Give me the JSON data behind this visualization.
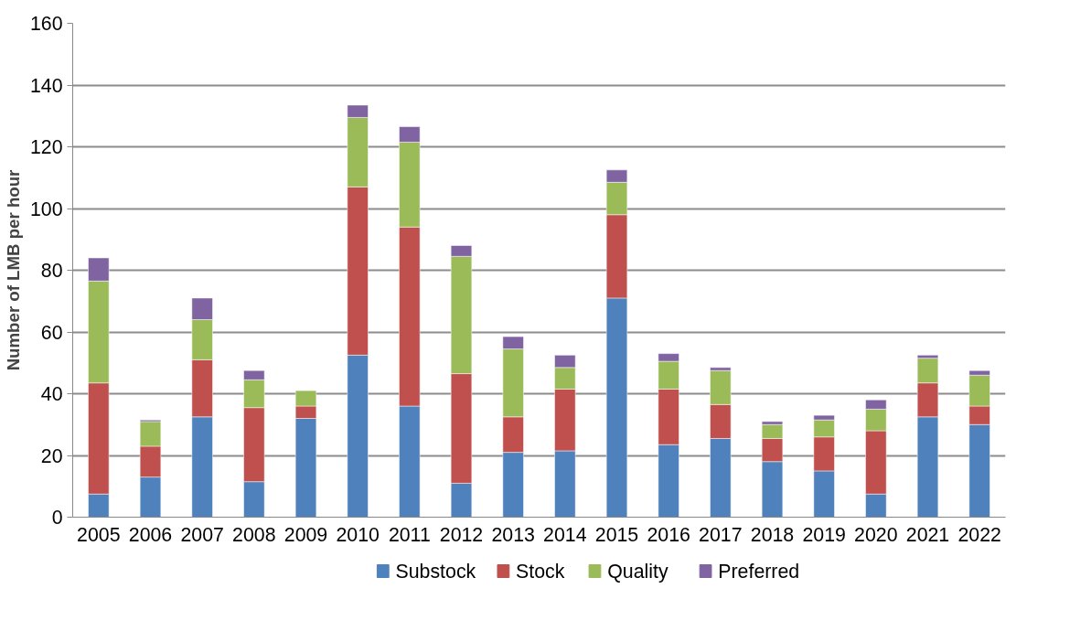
{
  "chart_data": {
    "type": "bar",
    "stacked": true,
    "ylabel": "Number of LMB per hour",
    "categories": [
      "2005",
      "2006",
      "2007",
      "2008",
      "2009",
      "2010",
      "2011",
      "2012",
      "2013",
      "2014",
      "2015",
      "2016",
      "2017",
      "2018",
      "2019",
      "2020",
      "2021",
      "2022"
    ],
    "series": [
      {
        "name": "Substock",
        "color": "#4f81bd",
        "values": [
          7.5,
          13,
          32.5,
          11.5,
          32,
          52.5,
          36,
          11,
          21,
          21.5,
          71,
          23.5,
          25.5,
          18,
          15,
          7.5,
          32.5,
          30
        ]
      },
      {
        "name": "Stock",
        "color": "#c0504d",
        "values": [
          36,
          10,
          18.5,
          24,
          4,
          54.5,
          58,
          35.5,
          11.5,
          20,
          27,
          18,
          11,
          7.5,
          11,
          20.5,
          11,
          6
        ]
      },
      {
        "name": "Quality",
        "color": "#9bbb59",
        "values": [
          33,
          8,
          13,
          9,
          5,
          22.5,
          27.5,
          38,
          22,
          7,
          10.5,
          9,
          11,
          4.5,
          5.5,
          7,
          8,
          10
        ]
      },
      {
        "name": "Preferred",
        "color": "#8064a2",
        "values": [
          7.5,
          0.5,
          7,
          3,
          null,
          4,
          5,
          3.5,
          4,
          4,
          4,
          2.5,
          1,
          1,
          1.5,
          3,
          1,
          1.5
        ]
      }
    ],
    "ylim": [
      0,
      160
    ],
    "yticks": [
      0,
      20,
      40,
      60,
      80,
      100,
      120,
      140,
      160
    ],
    "grid": "y",
    "legend": "bottom"
  }
}
